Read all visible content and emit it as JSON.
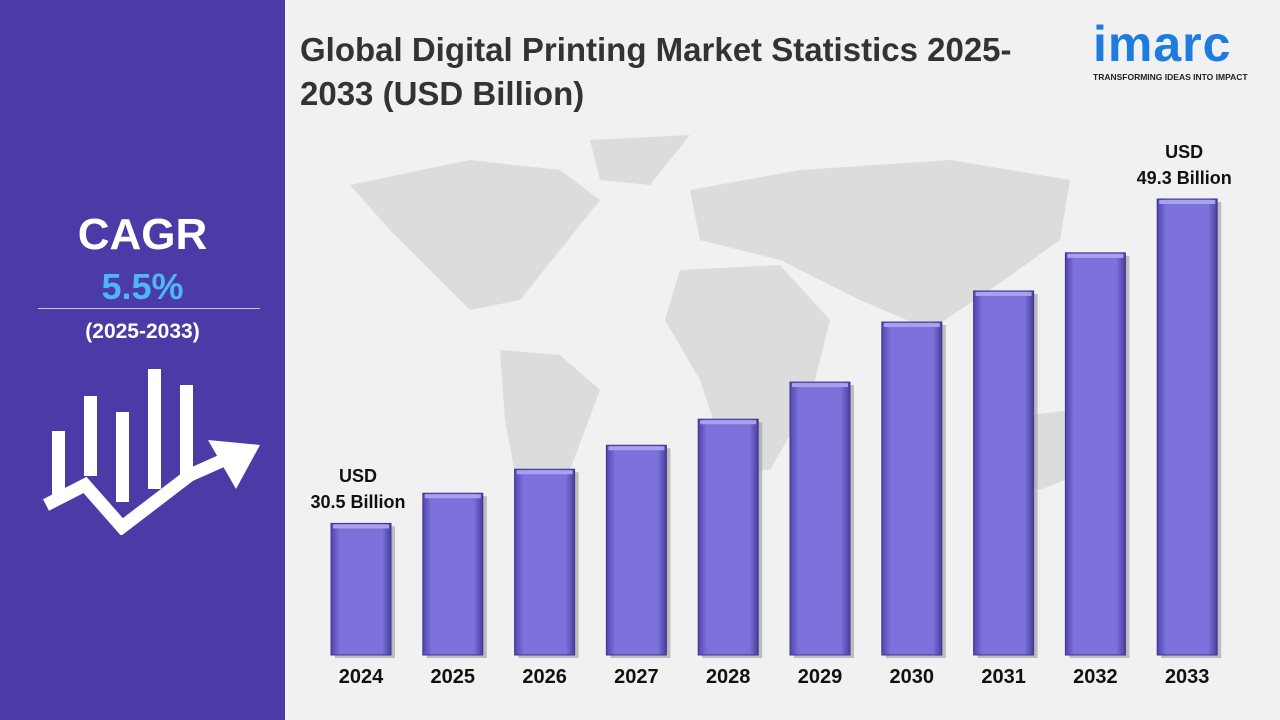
{
  "sidebar": {
    "label": "CAGR",
    "value": "5.5%",
    "period": "(2025-2033)"
  },
  "logo": {
    "name": "imarc",
    "tagline": "TRANSFORMING IDEAS INTO IMPACT"
  },
  "chart_data": {
    "type": "bar",
    "title": "Global Digital Printing Market Statistics 2025-2033 (USD Billion)",
    "categories": [
      "2024",
      "2025",
      "2026",
      "2027",
      "2028",
      "2029",
      "2030",
      "2031",
      "2032",
      "2033"
    ],
    "values": [
      30.5,
      32.25,
      33.64,
      35.03,
      36.54,
      38.69,
      42.17,
      43.97,
      46.18,
      49.3
    ],
    "value_labels": [
      "USD\n30.5 Billion",
      null,
      null,
      null,
      null,
      null,
      null,
      null,
      null,
      "USD\n49.3 Billion"
    ],
    "color": "#7b6fd8"
  }
}
